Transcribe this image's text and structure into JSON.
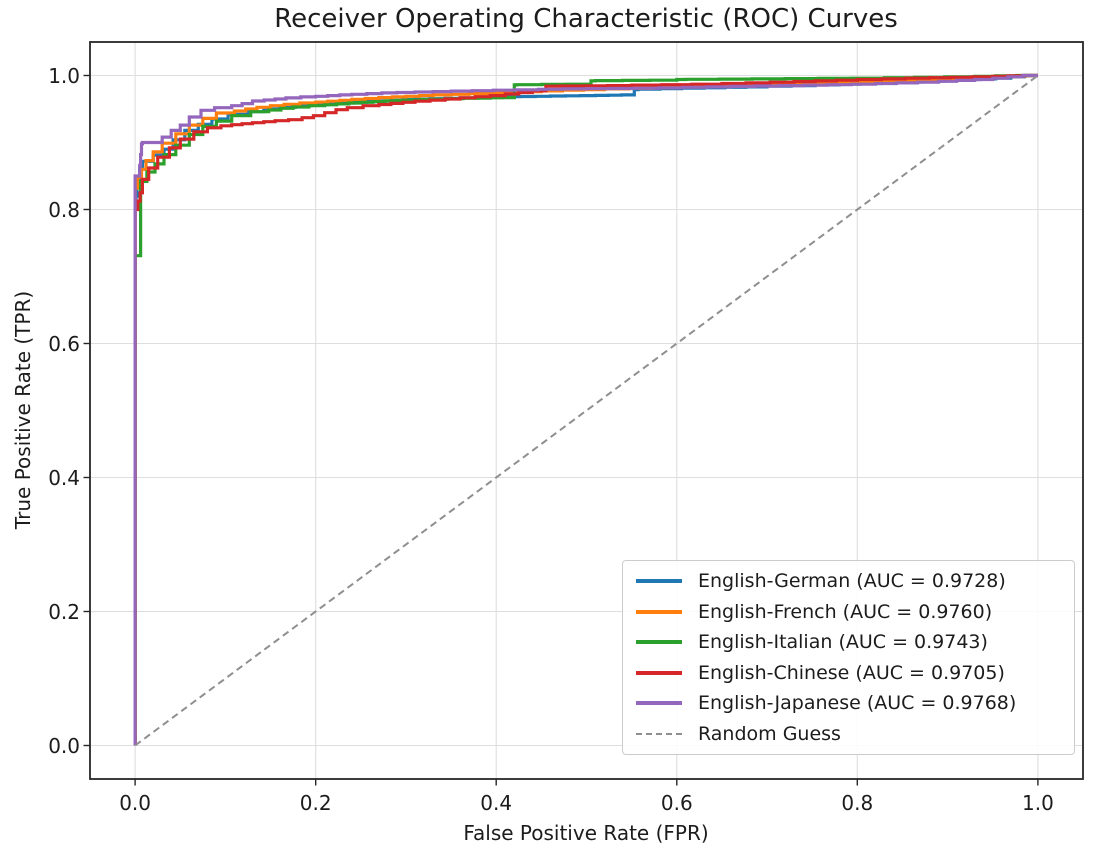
{
  "chart_data": {
    "type": "line",
    "title": "Receiver Operating Characteristic (ROC) Curves",
    "xlabel": "False Positive Rate (FPR)",
    "ylabel": "True Positive Rate (TPR)",
    "xlim": [
      -0.05,
      1.05
    ],
    "ylim": [
      -0.05,
      1.05
    ],
    "x_ticks": [
      0.0,
      0.2,
      0.4,
      0.6,
      0.8,
      1.0
    ],
    "x_tick_labels": [
      "0.0",
      "0.2",
      "0.4",
      "0.6",
      "0.8",
      "1.0"
    ],
    "y_ticks": [
      0.0,
      0.2,
      0.4,
      0.6,
      0.8,
      1.0
    ],
    "y_tick_labels": [
      "0.0",
      "0.2",
      "0.4",
      "0.6",
      "0.8",
      "1.0"
    ],
    "grid": true,
    "grid_color": "#dedede",
    "frame_color": "#262626",
    "legend_position": "lower right",
    "series": [
      {
        "name": "english-german",
        "label": "English-German (AUC = 0.9728)",
        "auc": 0.9728,
        "color": "#1f77b4",
        "style": "solid",
        "step": true,
        "points": [
          [
            0,
            0
          ],
          [
            0,
            0.795
          ],
          [
            0.002,
            0.82
          ],
          [
            0.005,
            0.84
          ],
          [
            0.008,
            0.862
          ],
          [
            0.02,
            0.872
          ],
          [
            0.032,
            0.881
          ],
          [
            0.042,
            0.89
          ],
          [
            0.055,
            0.904
          ],
          [
            0.07,
            0.918
          ],
          [
            0.085,
            0.927
          ],
          [
            0.103,
            0.935
          ],
          [
            0.125,
            0.942
          ],
          [
            0.16,
            0.95
          ],
          [
            0.195,
            0.955
          ],
          [
            0.23,
            0.958
          ],
          [
            0.27,
            0.961
          ],
          [
            0.31,
            0.964
          ],
          [
            0.36,
            0.966
          ],
          [
            0.41,
            0.968
          ],
          [
            0.46,
            0.969
          ],
          [
            0.51,
            0.97
          ],
          [
            0.553,
            0.971
          ],
          [
            0.557,
            0.979
          ],
          [
            0.63,
            0.981
          ],
          [
            0.7,
            0.983
          ],
          [
            0.78,
            0.986
          ],
          [
            0.85,
            0.989
          ],
          [
            0.92,
            0.993
          ],
          [
            0.97,
            0.996
          ],
          [
            1,
            1
          ]
        ]
      },
      {
        "name": "english-french",
        "label": "English-French (AUC = 0.9760)",
        "auc": 0.976,
        "color": "#ff7f0e",
        "style": "solid",
        "step": true,
        "points": [
          [
            0,
            0
          ],
          [
            0,
            0.81
          ],
          [
            0.003,
            0.832
          ],
          [
            0.007,
            0.848
          ],
          [
            0.012,
            0.86
          ],
          [
            0.02,
            0.873
          ],
          [
            0.03,
            0.886
          ],
          [
            0.045,
            0.899
          ],
          [
            0.06,
            0.913
          ],
          [
            0.075,
            0.926
          ],
          [
            0.09,
            0.936
          ],
          [
            0.11,
            0.944
          ],
          [
            0.135,
            0.95
          ],
          [
            0.165,
            0.955
          ],
          [
            0.2,
            0.959
          ],
          [
            0.24,
            0.963
          ],
          [
            0.285,
            0.967
          ],
          [
            0.33,
            0.97
          ],
          [
            0.39,
            0.973
          ],
          [
            0.45,
            0.976
          ],
          [
            0.52,
            0.979
          ],
          [
            0.6,
            0.982
          ],
          [
            0.68,
            0.985
          ],
          [
            0.76,
            0.988
          ],
          [
            0.84,
            0.991
          ],
          [
            0.91,
            0.994
          ],
          [
            0.96,
            0.997
          ],
          [
            1,
            1
          ]
        ]
      },
      {
        "name": "english-italian",
        "label": "English-Italian (AUC = 0.9743)",
        "auc": 0.9743,
        "color": "#2ca02c",
        "style": "solid",
        "step": true,
        "points": [
          [
            0,
            0
          ],
          [
            0,
            0.725
          ],
          [
            0.006,
            0.731
          ],
          [
            0.006,
            0.828
          ],
          [
            0.013,
            0.842
          ],
          [
            0.022,
            0.856
          ],
          [
            0.032,
            0.868
          ],
          [
            0.045,
            0.882
          ],
          [
            0.06,
            0.896
          ],
          [
            0.075,
            0.912
          ],
          [
            0.09,
            0.924
          ],
          [
            0.107,
            0.932
          ],
          [
            0.128,
            0.94
          ],
          [
            0.148,
            0.946
          ],
          [
            0.175,
            0.951
          ],
          [
            0.21,
            0.955
          ],
          [
            0.25,
            0.959
          ],
          [
            0.29,
            0.962
          ],
          [
            0.33,
            0.964
          ],
          [
            0.38,
            0.966
          ],
          [
            0.42,
            0.967
          ],
          [
            0.423,
            0.986
          ],
          [
            0.505,
            0.987
          ],
          [
            0.51,
            0.992
          ],
          [
            0.6,
            0.993
          ],
          [
            0.61,
            0.994
          ],
          [
            0.72,
            0.995
          ],
          [
            0.83,
            0.996
          ],
          [
            0.93,
            0.998
          ],
          [
            1,
            1
          ]
        ]
      },
      {
        "name": "english-chinese",
        "label": "English-Chinese (AUC = 0.9705)",
        "auc": 0.9705,
        "color": "#d62728",
        "style": "solid",
        "step": true,
        "points": [
          [
            0,
            0
          ],
          [
            0,
            0.78
          ],
          [
            0.003,
            0.8
          ],
          [
            0.008,
            0.825
          ],
          [
            0.015,
            0.845
          ],
          [
            0.025,
            0.862
          ],
          [
            0.038,
            0.878
          ],
          [
            0.05,
            0.892
          ],
          [
            0.065,
            0.905
          ],
          [
            0.08,
            0.916
          ],
          [
            0.095,
            0.922
          ],
          [
            0.107,
            0.925
          ],
          [
            0.13,
            0.928
          ],
          [
            0.155,
            0.931
          ],
          [
            0.185,
            0.934
          ],
          [
            0.21,
            0.94
          ],
          [
            0.235,
            0.949
          ],
          [
            0.27,
            0.955
          ],
          [
            0.31,
            0.96
          ],
          [
            0.36,
            0.965
          ],
          [
            0.41,
            0.97
          ],
          [
            0.455,
            0.977
          ],
          [
            0.47,
            0.984
          ],
          [
            0.55,
            0.985
          ],
          [
            0.65,
            0.987
          ],
          [
            0.73,
            0.99
          ],
          [
            0.8,
            0.993
          ],
          [
            0.88,
            0.996
          ],
          [
            0.95,
            0.998
          ],
          [
            1,
            1
          ]
        ]
      },
      {
        "name": "english-japanese",
        "label": "English-Japanese (AUC = 0.9768)",
        "auc": 0.9768,
        "color": "#9467bd",
        "style": "solid",
        "step": true,
        "points": [
          [
            0,
            0
          ],
          [
            0,
            0.845
          ],
          [
            0.005,
            0.85
          ],
          [
            0.008,
            0.898
          ],
          [
            0.03,
            0.9
          ],
          [
            0.04,
            0.908
          ],
          [
            0.05,
            0.918
          ],
          [
            0.06,
            0.926
          ],
          [
            0.073,
            0.938
          ],
          [
            0.088,
            0.948
          ],
          [
            0.107,
            0.952
          ],
          [
            0.13,
            0.958
          ],
          [
            0.143,
            0.962
          ],
          [
            0.167,
            0.965
          ],
          [
            0.2,
            0.968
          ],
          [
            0.24,
            0.971
          ],
          [
            0.29,
            0.974
          ],
          [
            0.35,
            0.976
          ],
          [
            0.42,
            0.978
          ],
          [
            0.5,
            0.98
          ],
          [
            0.58,
            0.981
          ],
          [
            0.66,
            0.983
          ],
          [
            0.74,
            0.985
          ],
          [
            0.82,
            0.987
          ],
          [
            0.89,
            0.99
          ],
          [
            0.95,
            0.994
          ],
          [
            1,
            1
          ]
        ]
      },
      {
        "name": "random-guess",
        "label": "Random Guess",
        "color": "#8f8f8f",
        "style": "dashed",
        "step": false,
        "points": [
          [
            0,
            0
          ],
          [
            1,
            1
          ]
        ]
      }
    ]
  }
}
